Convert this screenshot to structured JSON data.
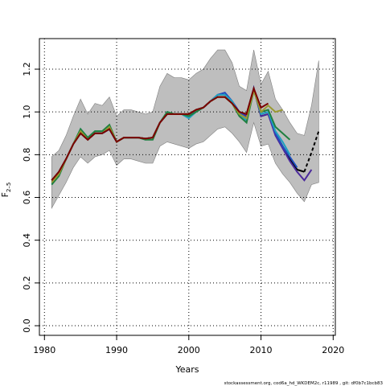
{
  "chart_data": {
    "type": "line",
    "xlabel": "Years",
    "ylabel": {
      "main": "F",
      "sub": "2–5"
    },
    "footer": "stockassessment.org, cod6a_hd_WKDEM2c, r11989 , git: df0b7c1bcb83",
    "x": [
      1981,
      1982,
      1983,
      1984,
      1985,
      1986,
      1987,
      1988,
      1989,
      1990,
      1991,
      1992,
      1993,
      1994,
      1995,
      1996,
      1997,
      1998,
      1999,
      2000,
      2001,
      2002,
      2003,
      2004,
      2005,
      2006,
      2007,
      2008,
      2009,
      2010,
      2011,
      2012,
      2013,
      2014,
      2015,
      2016,
      2017,
      2018
    ],
    "band": {
      "color": "#bebebe",
      "upper": [
        0.79,
        0.82,
        0.89,
        0.98,
        1.06,
        0.99,
        1.04,
        1.03,
        1.07,
        0.98,
        1.01,
        1.01,
        1.0,
        0.99,
        1.0,
        1.12,
        1.18,
        1.16,
        1.16,
        1.15,
        1.18,
        1.2,
        1.25,
        1.29,
        1.29,
        1.23,
        1.12,
        1.1,
        1.29,
        1.13,
        1.19,
        1.06,
        1.01,
        0.95,
        0.9,
        0.89,
        1.03,
        1.24
      ],
      "lower": [
        0.55,
        0.61,
        0.67,
        0.74,
        0.79,
        0.76,
        0.79,
        0.8,
        0.82,
        0.75,
        0.78,
        0.78,
        0.77,
        0.76,
        0.76,
        0.84,
        0.86,
        0.85,
        0.84,
        0.83,
        0.85,
        0.86,
        0.89,
        0.92,
        0.93,
        0.9,
        0.86,
        0.81,
        0.95,
        0.84,
        0.85,
        0.76,
        0.71,
        0.67,
        0.62,
        0.58,
        0.66,
        0.67
      ]
    },
    "series": [
      {
        "color": "#000000",
        "values": [
          0.68,
          0.72,
          0.78,
          0.85,
          0.9,
          0.87,
          0.9,
          0.9,
          0.92,
          0.86,
          0.88,
          0.88,
          0.88,
          0.875,
          0.88,
          0.95,
          0.99,
          0.99,
          0.99,
          0.99,
          1.01,
          1.02,
          1.05,
          1.07,
          1.07,
          1.04,
          1.0,
          0.99,
          1.11,
          0.98,
          0.99,
          0.9,
          0.84,
          0.78,
          0.73,
          0.72,
          null,
          null
        ]
      },
      {
        "color": "#4b2a9c",
        "values": [
          0.67,
          0.71,
          0.78,
          0.85,
          0.91,
          0.87,
          0.9,
          0.9,
          0.92,
          0.86,
          0.88,
          0.88,
          0.88,
          0.875,
          0.88,
          0.95,
          0.99,
          0.99,
          0.99,
          0.98,
          1.01,
          1.02,
          1.05,
          1.08,
          1.09,
          1.05,
          1.0,
          0.98,
          1.11,
          0.98,
          0.99,
          0.89,
          0.83,
          0.77,
          0.72,
          0.68,
          0.73,
          null
        ]
      },
      {
        "color": "#2050c0",
        "values": [
          0.67,
          0.71,
          0.78,
          0.85,
          0.91,
          0.87,
          0.9,
          0.9,
          0.92,
          0.86,
          0.88,
          0.88,
          0.88,
          0.875,
          0.88,
          0.95,
          0.99,
          0.99,
          0.99,
          0.98,
          1.01,
          1.02,
          1.05,
          1.08,
          1.09,
          1.05,
          1.0,
          0.97,
          1.11,
          0.99,
          1.0,
          0.9,
          0.84,
          0.79,
          0.74,
          null,
          null,
          null
        ]
      },
      {
        "color": "#20a0c0",
        "values": [
          0.66,
          0.71,
          0.78,
          0.85,
          0.92,
          0.88,
          0.91,
          0.91,
          0.93,
          0.86,
          0.88,
          0.88,
          0.88,
          0.87,
          0.88,
          0.95,
          1.0,
          0.99,
          0.99,
          0.97,
          1.0,
          1.02,
          1.05,
          1.08,
          1.08,
          1.05,
          0.99,
          0.96,
          1.11,
          0.99,
          1.0,
          0.91,
          0.86,
          0.8,
          null,
          null,
          null,
          null
        ]
      },
      {
        "color": "#208040",
        "values": [
          0.66,
          0.7,
          0.78,
          0.85,
          0.92,
          0.88,
          0.91,
          0.91,
          0.94,
          0.86,
          0.88,
          0.88,
          0.88,
          0.87,
          0.87,
          0.95,
          1.0,
          0.99,
          0.99,
          0.98,
          1.0,
          1.02,
          1.05,
          1.07,
          1.07,
          1.04,
          0.98,
          0.95,
          1.1,
          1.0,
          1.01,
          0.93,
          0.9,
          0.87,
          null,
          null,
          null,
          null
        ]
      },
      {
        "color": "#9a9a30",
        "values": [
          0.67,
          0.71,
          0.78,
          0.85,
          0.91,
          0.87,
          0.9,
          0.9,
          0.93,
          0.86,
          0.88,
          0.88,
          0.88,
          0.875,
          0.88,
          0.95,
          0.99,
          0.99,
          0.99,
          0.99,
          1.01,
          1.02,
          1.05,
          1.07,
          1.07,
          1.04,
          0.99,
          0.97,
          1.1,
          1.0,
          1.03,
          1.0,
          1.01,
          null,
          null,
          null,
          null,
          null
        ]
      },
      {
        "color": "#7a0000",
        "values": [
          0.68,
          0.72,
          0.78,
          0.85,
          0.9,
          0.87,
          0.9,
          0.9,
          0.92,
          0.86,
          0.88,
          0.88,
          0.88,
          0.875,
          0.88,
          0.95,
          0.99,
          0.99,
          0.99,
          0.99,
          1.01,
          1.02,
          1.05,
          1.07,
          1.07,
          1.04,
          1.0,
          0.99,
          1.11,
          1.02,
          1.04,
          null,
          null,
          null,
          null,
          null,
          null,
          null
        ]
      },
      {
        "color": "#000000",
        "dash": true,
        "values": [
          null,
          null,
          null,
          null,
          null,
          null,
          null,
          null,
          null,
          null,
          null,
          null,
          null,
          null,
          null,
          null,
          null,
          null,
          null,
          null,
          null,
          null,
          null,
          null,
          null,
          null,
          null,
          null,
          null,
          null,
          null,
          null,
          null,
          null,
          null,
          0.72,
          0.81,
          0.91
        ]
      }
    ],
    "xlim": [
      1979.3,
      2020.3
    ],
    "ylim": [
      -0.045,
      1.343
    ],
    "xticks": [
      1980,
      1990,
      2000,
      2010,
      2020
    ],
    "yticks": [
      {
        "value": 0,
        "label": "0.0"
      },
      0.2,
      0.4,
      0.6,
      0.8,
      {
        "value": 1,
        "label": "1.0"
      },
      1.2
    ],
    "grid": true
  }
}
